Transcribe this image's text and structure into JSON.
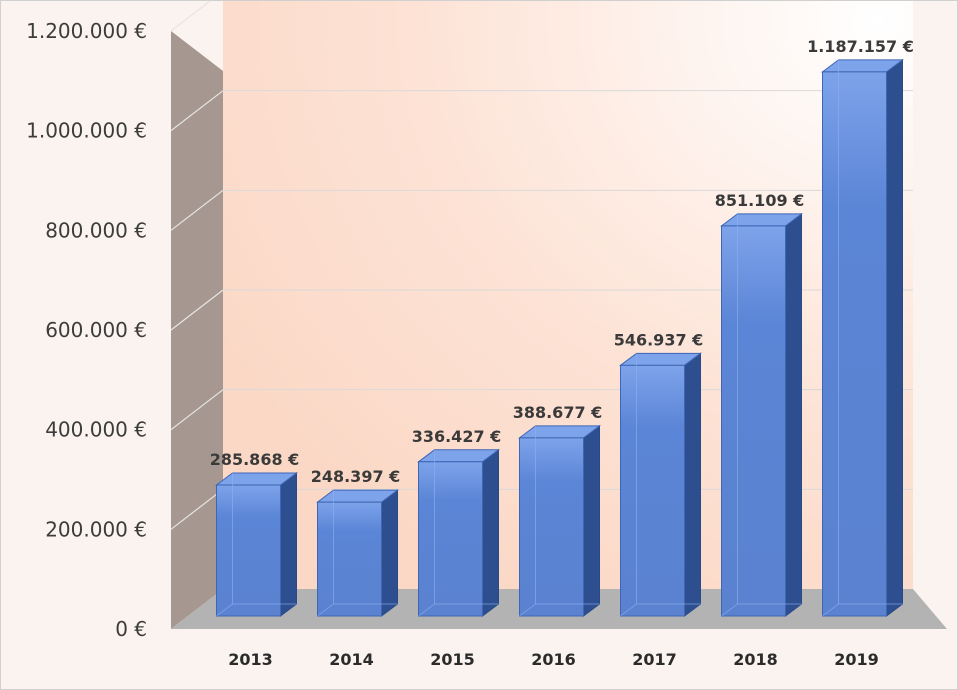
{
  "chart_data": {
    "type": "bar",
    "three_d": true,
    "categories": [
      "2013",
      "2014",
      "2015",
      "2016",
      "2017",
      "2018",
      "2019"
    ],
    "values": [
      285868,
      248397,
      336427,
      388677,
      546937,
      851109,
      1187157
    ],
    "data_labels": [
      "285.868 €",
      "248.397 €",
      "336.427 €",
      "388.677 €",
      "546.937 €",
      "851.109 €",
      "1.187.157 €"
    ],
    "y_ticks": [
      "0 €",
      "200.000 €",
      "400.000 €",
      "600.000 €",
      "800.000 €",
      "1.000.000 €",
      "1.200.000 €"
    ],
    "ylim": [
      0,
      1200000
    ],
    "grid": true,
    "legend": "none",
    "title": "",
    "xlabel": "",
    "ylabel": "",
    "colors": {
      "bar_front": "#5b85d6",
      "bar_side": "#2e4f8f",
      "bar_top": "#7da3ea",
      "back_wall_light": "#ffffff",
      "back_wall_warm": "#fde3d6",
      "side_wall": "#a69890",
      "floor": "#b3b3b3"
    }
  }
}
